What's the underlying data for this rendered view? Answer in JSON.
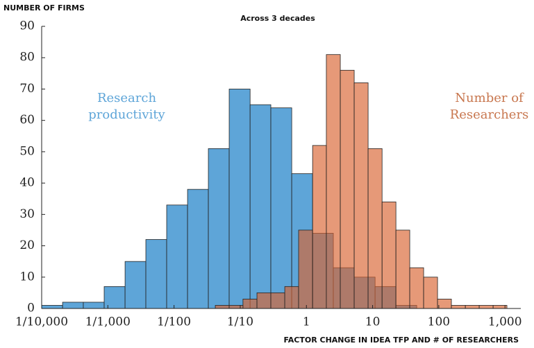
{
  "chart_data": {
    "type": "histogram",
    "title": "Across 3 decades",
    "ylabel": "NUMBER OF FIRMS",
    "xlabel": "FACTOR CHANGE IN IDEA TFP AND # OF RESEARCHERS",
    "xscale": "log",
    "xlim": [
      0.0001,
      1500
    ],
    "ylim": [
      0,
      90
    ],
    "xticks": [
      {
        "value": 0.0001,
        "label": "1/10,000"
      },
      {
        "value": 0.001,
        "label": "1/1,000"
      },
      {
        "value": 0.01,
        "label": "1/100"
      },
      {
        "value": 0.1,
        "label": "1/10"
      },
      1,
      10,
      100,
      {
        "value": 1000,
        "label": "1,000"
      }
    ],
    "yticks": [
      0,
      10,
      20,
      30,
      40,
      50,
      60,
      70,
      80,
      90
    ],
    "series": [
      {
        "name": "Research productivity",
        "color": "#5ea5d8",
        "bins": [
          0.0001,
          0.000207,
          0.000426,
          0.00088,
          0.00182,
          0.00375,
          0.00774,
          0.016,
          0.033,
          0.0681,
          0.141,
          0.29,
          0.6,
          1.24,
          2.55,
          5.27,
          10.9,
          22.5,
          46.4
        ],
        "values": [
          1,
          2,
          2,
          7,
          15,
          22,
          33,
          38,
          51,
          70,
          65,
          64,
          43,
          24,
          13,
          10,
          7,
          1
        ]
      },
      {
        "name": "Number of Researchers",
        "color": "#d9622f",
        "bins": [
          0.042,
          0.0681,
          0.11,
          0.179,
          0.29,
          0.471,
          0.762,
          1.24,
          2.0,
          3.25,
          5.27,
          8.55,
          13.9,
          22.5,
          36.4,
          59.0,
          95.7,
          155,
          252,
          408,
          662,
          1070
        ],
        "values": [
          1,
          1,
          3,
          5,
          5,
          7,
          25,
          52,
          81,
          76,
          72,
          51,
          34,
          25,
          13,
          10,
          3,
          1,
          1,
          1,
          1
        ]
      }
    ]
  }
}
